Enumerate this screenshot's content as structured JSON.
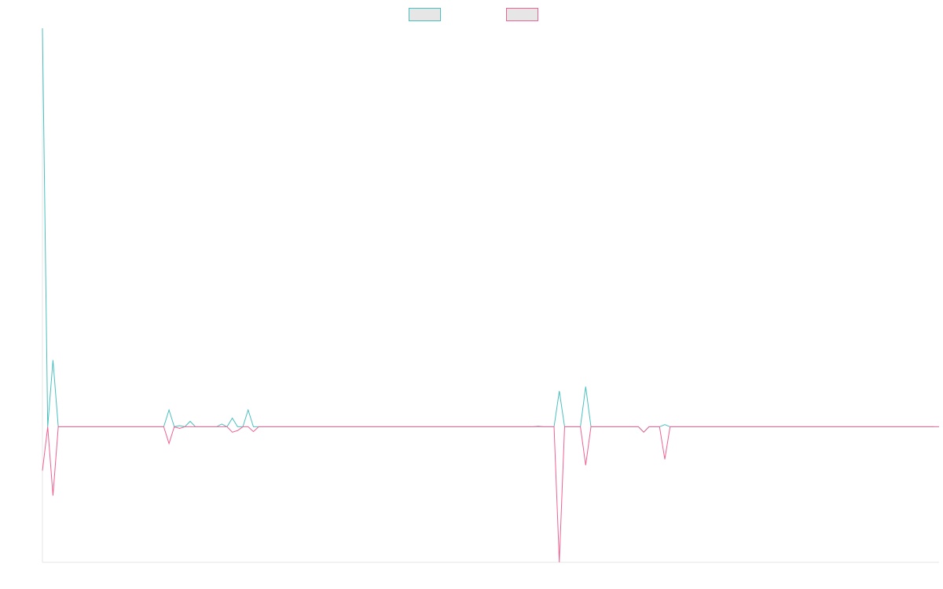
{
  "chart_data": {
    "type": "line",
    "title": "",
    "xlabel": "",
    "ylabel": "",
    "legend_position": "top-center",
    "grid": false,
    "x_axis_line": false,
    "ylim": [
      -25,
      73.5
    ],
    "series": [
      {
        "label": "",
        "color": "#4bc0c0",
        "fill": "#e6e6e6",
        "values": [
          73.5,
          0,
          12.3,
          0,
          0,
          0,
          0,
          0,
          0,
          0,
          0,
          0,
          0,
          0,
          0,
          0,
          0,
          0,
          0,
          0,
          0,
          0,
          0,
          0,
          3.1,
          0,
          0.2,
          0,
          1.0,
          0,
          0,
          0,
          0,
          0,
          0.5,
          0,
          1.6,
          0,
          0,
          3.1,
          0,
          0,
          0,
          0,
          0,
          0,
          0,
          0,
          0,
          0,
          0,
          0,
          0,
          0,
          0,
          0,
          0,
          0,
          0,
          0,
          0,
          0,
          0,
          0,
          0,
          0,
          0,
          0,
          0,
          0,
          0,
          0,
          0,
          0,
          0,
          0,
          0,
          0,
          0,
          0,
          0,
          0,
          0,
          0,
          0,
          0,
          0,
          0,
          0,
          0,
          0,
          0,
          0,
          0,
          0,
          0,
          0,
          0,
          6.6,
          0,
          0,
          0,
          0,
          7.4,
          0,
          0,
          0,
          0,
          0,
          0,
          0,
          0,
          0,
          0,
          -1.0,
          0,
          0,
          0,
          0.4,
          0,
          0,
          0,
          0,
          0,
          0,
          0,
          0,
          0,
          0,
          0,
          0,
          0,
          0,
          0,
          0,
          0,
          0,
          0,
          0,
          0,
          0,
          0,
          0,
          0,
          0,
          0,
          0,
          0,
          0,
          0,
          0,
          0,
          0,
          0,
          0,
          0,
          0,
          0,
          0,
          0,
          0,
          0,
          0,
          0,
          0,
          0,
          0,
          0,
          0,
          0
        ]
      },
      {
        "label": "",
        "color": "#f06292",
        "fill": "#e6e6e6",
        "values": [
          -8.1,
          0,
          -12.7,
          0,
          0,
          0,
          0,
          0,
          0,
          0,
          0,
          0,
          0,
          0,
          0,
          0,
          0,
          0,
          0,
          0,
          0,
          0,
          0,
          0,
          -3.1,
          0,
          -0.3,
          0,
          0,
          0,
          0,
          0,
          0,
          0,
          0,
          0,
          -1.0,
          -0.7,
          0,
          0,
          -0.9,
          0,
          0,
          0,
          0,
          0,
          0,
          0,
          0,
          0,
          0,
          0,
          0,
          0,
          0,
          0,
          0,
          0,
          0,
          0,
          0,
          0,
          0,
          0,
          0,
          0,
          0,
          0,
          0,
          0,
          0,
          0,
          0,
          0,
          0,
          0,
          0,
          0,
          0,
          0,
          0,
          0,
          0,
          0,
          0,
          0,
          0,
          0,
          0,
          0,
          0,
          0,
          0,
          0,
          0.1,
          0,
          0,
          0,
          -25.0,
          0,
          0,
          0,
          0,
          -7.1,
          0,
          0,
          0,
          0,
          0,
          0,
          0,
          0,
          0,
          0,
          -1.0,
          0,
          0,
          0,
          -6.0,
          0,
          0,
          0,
          0,
          0,
          0,
          0,
          0,
          0,
          0,
          0,
          0,
          0,
          0,
          0,
          0,
          0,
          0,
          0,
          0,
          0,
          0,
          0,
          0,
          0,
          0,
          0,
          0,
          0,
          0,
          0,
          0,
          0,
          0,
          0,
          0,
          0,
          0,
          0,
          0,
          0,
          0,
          0,
          0,
          0,
          0,
          0,
          0,
          0,
          0,
          0,
          0
        ]
      }
    ]
  }
}
